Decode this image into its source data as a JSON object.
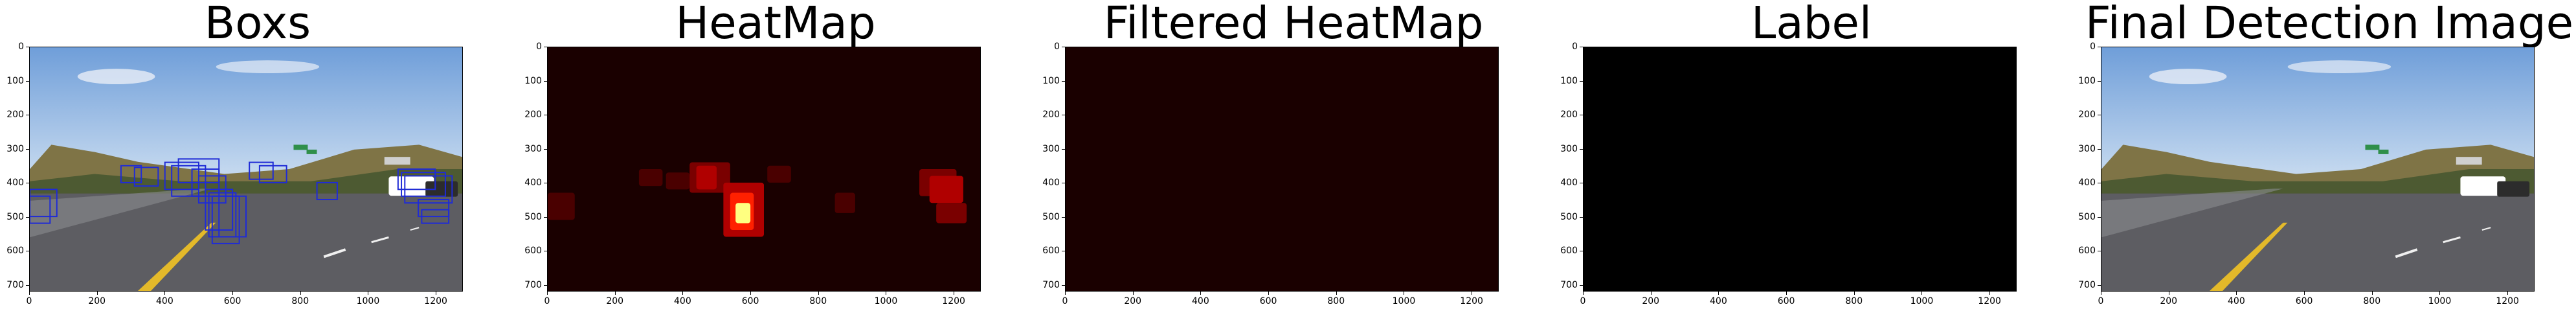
{
  "figure": {
    "background": "#ffffff",
    "panels": [
      {
        "id": "boxs",
        "title": "Boxs",
        "image": "road-scene-with-detection-boxes",
        "box_color": "#1f2bd6"
      },
      {
        "id": "heatmap",
        "title": "HeatMap",
        "image": "heatmap",
        "background_color": "#1a0000",
        "hot_colors": [
          "#4a0000",
          "#7a0000",
          "#b00000",
          "#ff2000",
          "#ffff80"
        ]
      },
      {
        "id": "filtered-heatmap",
        "title": "Filtered HeatMap",
        "image": "filtered-heatmap",
        "background_color": "#1a0000"
      },
      {
        "id": "label",
        "title": "Label",
        "image": "label-map",
        "background_color": "#000000"
      },
      {
        "id": "final",
        "title": "Final Detection Image",
        "image": "road-scene-final"
      }
    ],
    "axes": {
      "x_ticks": [
        "0",
        "200",
        "400",
        "600",
        "800",
        "1000",
        "1200"
      ],
      "y_ticks": [
        "0",
        "100",
        "200",
        "300",
        "400",
        "500",
        "600",
        "700"
      ],
      "x_range": [
        0,
        1280
      ],
      "y_range": [
        0,
        720
      ]
    }
  }
}
